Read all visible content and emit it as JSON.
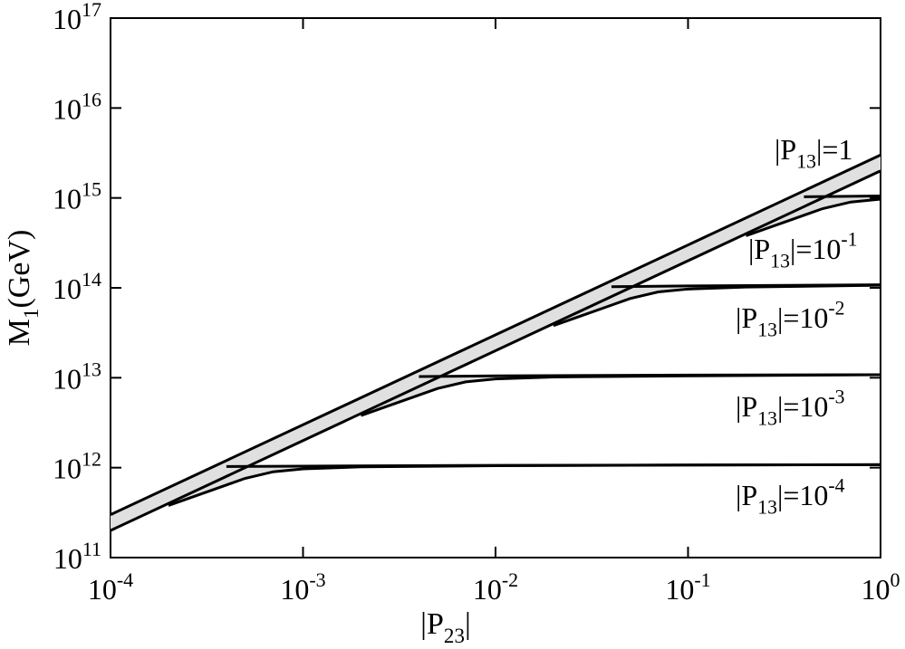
{
  "chart_data": {
    "type": "band",
    "x_label": {
      "text": "|P",
      "sub": "23",
      "tail": "|"
    },
    "y_label": {
      "text": "M",
      "sub": "1",
      "tail": "(GeV)"
    },
    "log_x": true,
    "log_y": true,
    "xlim": [
      0.0001,
      1
    ],
    "ylim": [
      100000000000.0,
      1e+17
    ],
    "xticks": [
      {
        "value": 0.0001,
        "label": "10",
        "exponent": "-4"
      },
      {
        "value": 0.001,
        "label": "10",
        "exponent": "-3"
      },
      {
        "value": 0.01,
        "label": "10",
        "exponent": "-2"
      },
      {
        "value": 0.1,
        "label": "10",
        "exponent": "-1"
      },
      {
        "value": 1,
        "label": "10",
        "exponent": "0"
      }
    ],
    "yticks": [
      {
        "value": 100000000000.0,
        "label": "10",
        "exponent": "11"
      },
      {
        "value": 1000000000000.0,
        "label": "10",
        "exponent": "12"
      },
      {
        "value": 10000000000000.0,
        "label": "10",
        "exponent": "13"
      },
      {
        "value": 100000000000000.0,
        "label": "10",
        "exponent": "14"
      },
      {
        "value": 1000000000000000.0,
        "label": "10",
        "exponent": "15"
      },
      {
        "value": 1e+16,
        "label": "10",
        "exponent": "16"
      },
      {
        "value": 1e+17,
        "label": "10",
        "exponent": "17"
      }
    ],
    "fill_color": "#e0e0e0",
    "line_color": "#000000",
    "bands": [
      {
        "label": {
          "text": "|P",
          "sub": "13",
          "tail": "|=1"
        },
        "upper": {
          "x": [
            0.0001,
            1
          ],
          "values": [
            300000000000.0,
            3000000000000000.0
          ]
        },
        "lower": {
          "x": [
            0.0001,
            1
          ],
          "values": [
            200000000000.0,
            2000000000000000.0
          ]
        }
      },
      {
        "label": {
          "text": "|P",
          "sub": "13",
          "tail": "|=10",
          "sup": "-1"
        },
        "upper": {
          "x": [
            0.4,
            1
          ],
          "values": [
            1030000000000000.0,
            1050000000000000.0
          ]
        },
        "lower": {
          "x": [
            0.2,
            0.35,
            0.5,
            0.7,
            1
          ],
          "values": [
            380000000000000.0,
            580000000000000.0,
            760000000000000.0,
            900000000000000.0,
            970000000000000.0
          ]
        }
      },
      {
        "label": {
          "text": "|P",
          "sub": "13",
          "tail": "|=10",
          "sup": "-2"
        },
        "upper": {
          "x": [
            0.04,
            0.1,
            1
          ],
          "values": [
            103000000000000.0,
            105000000000000.0,
            108000000000000.0
          ]
        },
        "lower": {
          "x": [
            0.02,
            0.035,
            0.05,
            0.07,
            0.1,
            0.2,
            1
          ],
          "values": [
            38000000000000.0,
            58000000000000.0,
            76000000000000.0,
            90000000000000.0,
            97000000000000.0,
            102000000000000.0,
            107000000000000.0
          ]
        }
      },
      {
        "label": {
          "text": "|P",
          "sub": "13",
          "tail": "|=10",
          "sup": "-3"
        },
        "upper": {
          "x": [
            0.004,
            0.01,
            0.1,
            1
          ],
          "values": [
            10300000000000.0,
            10500000000000.0,
            10700000000000.0,
            10800000000000.0
          ]
        },
        "lower": {
          "x": [
            0.002,
            0.0035,
            0.005,
            0.007,
            0.01,
            0.02,
            0.1,
            1
          ],
          "values": [
            3800000000000.0,
            5800000000000.0,
            7600000000000.0,
            9000000000000.0,
            9700000000000.0,
            10200000000000.0,
            10500000000000.0,
            10800000000000.0
          ]
        }
      },
      {
        "label": {
          "text": "|P",
          "sub": "13",
          "tail": "|=10",
          "sup": "-4"
        },
        "upper": {
          "x": [
            0.0004,
            0.001,
            0.01,
            1
          ],
          "values": [
            1030000000000.0,
            1040000000000.0,
            1060000000000.0,
            1080000000000.0
          ]
        },
        "lower": {
          "x": [
            0.0002,
            0.00035,
            0.0005,
            0.0007,
            0.001,
            0.002,
            0.01,
            0.1,
            1
          ],
          "values": [
            380000000000.0,
            580000000000.0,
            760000000000.0,
            900000000000.0,
            970000000000.0,
            1020000000000.0,
            1050000000000.0,
            1070000000000.0,
            1080000000000.0
          ]
        }
      }
    ]
  }
}
